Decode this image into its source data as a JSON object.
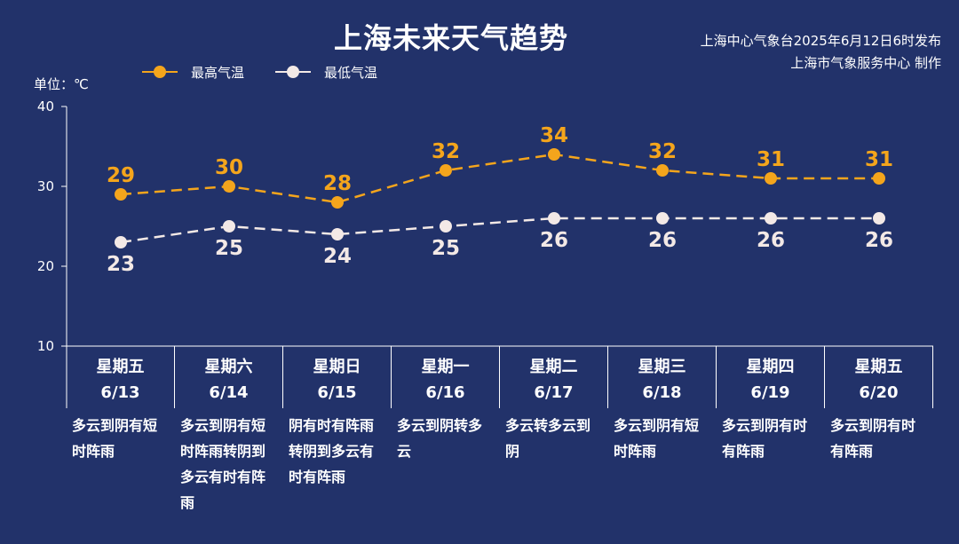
{
  "title": "上海未来天气趋势",
  "issuer_line1": "上海中心气象台2025年6月12日6时发布",
  "issuer_line2": "上海市气象服务中心 制作",
  "unit_label": "单位：℃",
  "colors": {
    "background": "#22326a",
    "high": "#f4a51c",
    "low": "#f3e9e6",
    "axis": "#ffffff"
  },
  "chart_data": {
    "type": "line",
    "categories": [
      "星期五 6/13",
      "星期六 6/14",
      "星期日 6/15",
      "星期一 6/16",
      "星期二 6/17",
      "星期三 6/18",
      "星期四 6/19",
      "星期五 6/20"
    ],
    "series": [
      {
        "name": "最高气温",
        "values": [
          29,
          30,
          28,
          32,
          34,
          32,
          31,
          31
        ],
        "color": "#f4a51c",
        "style": "dashed"
      },
      {
        "name": "最低气温",
        "values": [
          23,
          25,
          24,
          25,
          26,
          26,
          26,
          26
        ],
        "color": "#f3e9e6",
        "style": "dashed"
      }
    ],
    "yticks": [
      10,
      20,
      30,
      40
    ],
    "ylim": [
      10,
      40
    ],
    "legend": "top-left",
    "grid": false
  },
  "days": [
    {
      "weekday": "星期五",
      "date": "6/13",
      "desc": "多云到阴有短时阵雨"
    },
    {
      "weekday": "星期六",
      "date": "6/14",
      "desc": "多云到阴有短时阵雨转阴到多云有时有阵雨"
    },
    {
      "weekday": "星期日",
      "date": "6/15",
      "desc": "阴有时有阵雨转阴到多云有时有阵雨"
    },
    {
      "weekday": "星期一",
      "date": "6/16",
      "desc": "多云到阴转多云"
    },
    {
      "weekday": "星期二",
      "date": "6/17",
      "desc": "多云转多云到阴"
    },
    {
      "weekday": "星期三",
      "date": "6/18",
      "desc": "多云到阴有短时阵雨"
    },
    {
      "weekday": "星期四",
      "date": "6/19",
      "desc": "多云到阴有时有阵雨"
    },
    {
      "weekday": "星期五",
      "date": "6/20",
      "desc": "多云到阴有时有阵雨"
    }
  ]
}
